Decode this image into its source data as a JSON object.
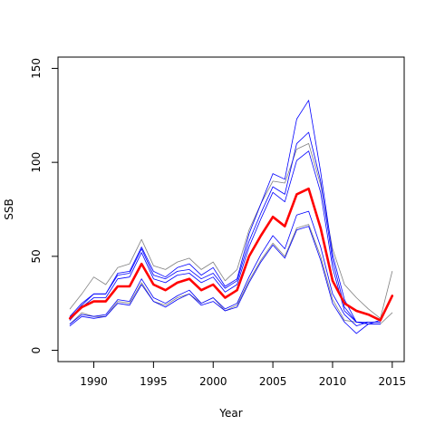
{
  "chart_data": {
    "type": "line",
    "title": "",
    "xlabel": "Year",
    "ylabel": "SSB",
    "xlim": [
      1987,
      2016
    ],
    "ylim": [
      -6,
      156
    ],
    "xticks": [
      1990,
      1995,
      2000,
      2005,
      2010,
      2015
    ],
    "xtick_labels": [
      "1990",
      "1995",
      "2000",
      "2005",
      "2010",
      "2015"
    ],
    "yticks": [
      0,
      50,
      100,
      150
    ],
    "ytick_labels": [
      "0",
      "50",
      "100",
      "150"
    ],
    "grid": false,
    "legend": "none",
    "x": [
      1988,
      1989,
      1990,
      1991,
      1992,
      1993,
      1994,
      1995,
      1996,
      1997,
      1998,
      1999,
      2000,
      2001,
      2002,
      2003,
      2004,
      2005,
      2006,
      2007,
      2008,
      2009,
      2010,
      2011,
      2012,
      2013,
      2014,
      2015
    ],
    "series": [
      {
        "role": "estimate",
        "color": "#ff0000",
        "values": [
          17,
          23,
          26,
          26,
          34,
          34,
          46,
          35,
          32,
          36,
          38,
          32,
          35,
          28,
          32,
          50,
          61,
          71,
          66,
          83,
          86,
          65,
          37,
          25,
          21,
          19,
          16,
          29
        ]
      },
      {
        "role": "outer-upper",
        "color": "#808080",
        "values": [
          22,
          30,
          39,
          35,
          44,
          46,
          59,
          45,
          43,
          47,
          49,
          43,
          47,
          37,
          43,
          64,
          78,
          90,
          89,
          107,
          110,
          88,
          54,
          35,
          28,
          22,
          17,
          42
        ]
      },
      {
        "role": "outer-lower",
        "color": "#808080",
        "values": [
          14,
          20,
          18,
          18,
          26,
          25,
          36,
          26,
          24,
          28,
          30,
          25,
          28,
          21,
          24,
          37,
          48,
          57,
          50,
          65,
          67,
          50,
          27,
          16,
          15,
          14,
          14,
          20
        ]
      },
      {
        "role": "upper-1",
        "color": "#0000ff",
        "values": [
          18,
          25,
          30,
          30,
          40,
          41,
          54,
          40,
          38,
          42,
          43,
          38,
          41,
          33,
          37,
          58,
          73,
          87,
          83,
          110,
          116,
          90,
          48,
          23,
          15,
          15,
          15,
          null
        ]
      },
      {
        "role": "upper-2",
        "color": "#0000ff",
        "values": [
          17,
          24,
          30,
          30,
          41,
          42,
          55,
          42,
          39,
          44,
          46,
          40,
          44,
          34,
          38,
          62,
          78,
          94,
          91,
          123,
          133,
          95,
          51,
          27,
          15,
          14,
          14,
          null
        ]
      },
      {
        "role": "lower-1",
        "color": "#0000ff",
        "values": [
          14,
          19,
          18,
          19,
          27,
          26,
          38,
          28,
          25,
          29,
          32,
          25,
          28,
          22,
          25,
          39,
          51,
          61,
          54,
          72,
          74,
          55,
          30,
          19,
          13,
          15,
          15,
          null
        ]
      },
      {
        "role": "lower-2",
        "color": "#0000ff",
        "values": [
          13,
          18,
          17,
          18,
          25,
          24,
          35,
          26,
          23,
          27,
          30,
          24,
          26,
          21,
          23,
          36,
          47,
          56,
          49,
          64,
          66,
          48,
          25,
          15,
          9,
          14,
          16,
          null
        ]
      },
      {
        "role": "mid-upper",
        "color": "#0000ff",
        "values": [
          16,
          23,
          28,
          28,
          38,
          39,
          52,
          38,
          36,
          40,
          41,
          36,
          39,
          31,
          35,
          55,
          70,
          84,
          79,
          101,
          106,
          84,
          44,
          21,
          15,
          14,
          14,
          null
        ]
      }
    ]
  }
}
